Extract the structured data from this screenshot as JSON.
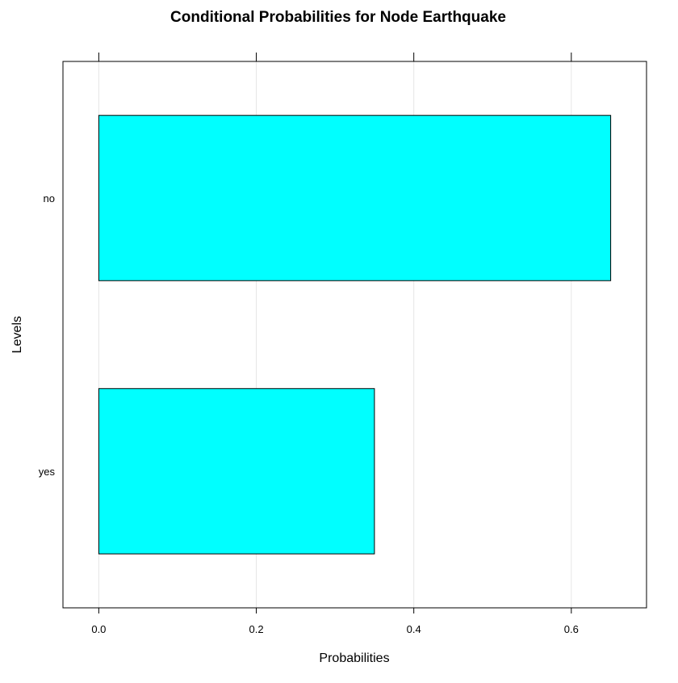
{
  "chart_data": {
    "type": "bar",
    "orientation": "horizontal",
    "title": "Conditional Probabilities for Node Earthquake",
    "xlabel": "Probabilities",
    "ylabel": "Levels",
    "categories": [
      "no",
      "yes"
    ],
    "values": [
      0.65,
      0.35
    ],
    "xlim": [
      -0.0455,
      0.6955
    ],
    "xticks": [
      "0.0",
      "0.2",
      "0.4",
      "0.6"
    ],
    "grid": true,
    "legend": "none",
    "colors": {
      "bar_fill": "#00ffff",
      "bar_stroke": "#000000",
      "grid": "#e6e6e6",
      "axis": "#000000"
    }
  }
}
